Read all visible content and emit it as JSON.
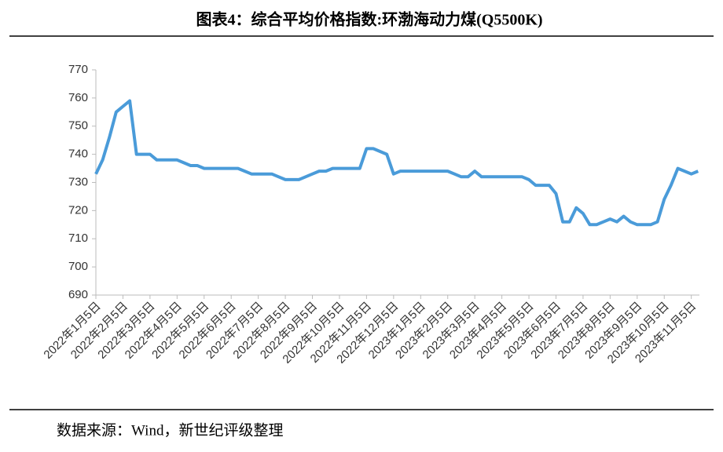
{
  "chart_data": {
    "type": "line",
    "title": "图表4：综合平均价格指数:环渤海动力煤(Q5500K)",
    "source": "数据来源：Wind，新世纪评级整理",
    "categories": [
      "2022年1月5日",
      null,
      null,
      null,
      "2022年2月5日",
      null,
      null,
      null,
      "2022年3月5日",
      null,
      null,
      null,
      "2022年4月5日",
      null,
      null,
      null,
      "2022年5月5日",
      null,
      null,
      null,
      "2022年6月5日",
      null,
      null,
      null,
      "2022年7月5日",
      null,
      null,
      null,
      "2022年8月5日",
      null,
      null,
      null,
      "2022年9月5日",
      null,
      null,
      null,
      "2022年10月5日",
      null,
      null,
      null,
      "2022年11月5日",
      null,
      null,
      null,
      "2022年12月5日",
      null,
      null,
      null,
      "2023年1月5日",
      null,
      null,
      null,
      "2023年2月5日",
      null,
      null,
      null,
      "2023年3月5日",
      null,
      null,
      null,
      "2023年4月5日",
      null,
      null,
      null,
      "2023年5月5日",
      null,
      null,
      null,
      "2023年6月5日",
      null,
      null,
      null,
      "2023年7月5日",
      null,
      null,
      null,
      "2023年8月5日",
      null,
      null,
      null,
      "2023年9月5日",
      null,
      null,
      null,
      "2023年10月5日",
      null,
      null,
      null,
      "2023年11月5日",
      null
    ],
    "series": [
      {
        "name": "综合平均价格指数:环渤海动力煤(Q5500K)",
        "color": "#4a9bd9",
        "values": [
          733,
          738,
          746,
          755,
          757,
          759,
          740,
          740,
          740,
          738,
          738,
          738,
          738,
          737,
          736,
          736,
          735,
          735,
          735,
          735,
          735,
          735,
          734,
          733,
          733,
          733,
          733,
          732,
          731,
          731,
          731,
          732,
          733,
          734,
          734,
          735,
          735,
          735,
          735,
          735,
          742,
          742,
          741,
          740,
          733,
          734,
          734,
          734,
          734,
          734,
          734,
          734,
          734,
          733,
          732,
          732,
          734,
          732,
          732,
          732,
          732,
          732,
          732,
          732,
          731,
          729,
          729,
          729,
          726,
          716,
          716,
          721,
          719,
          715,
          715,
          716,
          717,
          716,
          718,
          716,
          715,
          715,
          715,
          716,
          724,
          729,
          735,
          734,
          733,
          734
        ]
      }
    ],
    "ylim": [
      690,
      770
    ],
    "yticks": [
      690,
      700,
      710,
      720,
      730,
      740,
      750,
      760,
      770
    ],
    "grid": false
  }
}
